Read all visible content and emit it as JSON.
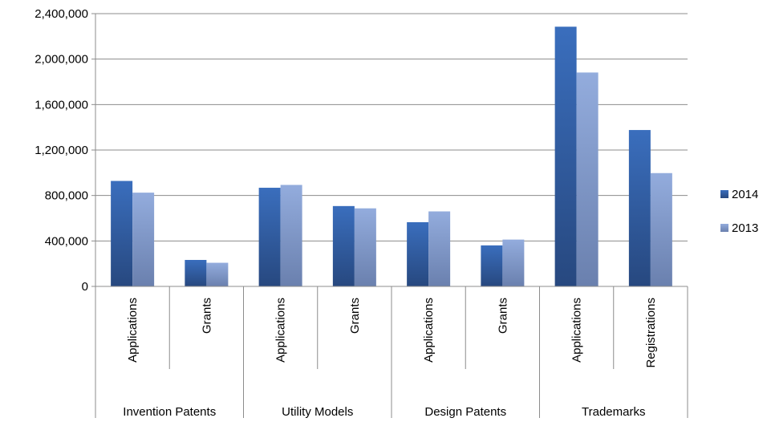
{
  "chart_data": {
    "type": "bar",
    "title": "",
    "xlabel": "",
    "ylabel": "",
    "ylim": [
      0,
      2400000
    ],
    "yticks": [
      "0",
      "400,000",
      "800,000",
      "1,200,000",
      "1,600,000",
      "2,000,000",
      "2,400,000"
    ],
    "categories": [
      "Applications",
      "Grants",
      "Applications",
      "Grants",
      "Applications",
      "Grants",
      "Applications",
      "Registrations"
    ],
    "groups": [
      {
        "label": "Invention Patents",
        "span": 2
      },
      {
        "label": "Utility Models",
        "span": 2
      },
      {
        "label": "Design Patents",
        "span": 2
      },
      {
        "label": "Trademarks",
        "span": 2
      }
    ],
    "series": [
      {
        "name": "2014",
        "color": "#3565AE",
        "values": [
          928000,
          233000,
          868000,
          707000,
          565000,
          361000,
          2285000,
          1376000
        ]
      },
      {
        "name": "2013",
        "color": "#8FA8D8",
        "values": [
          825000,
          208000,
          893000,
          687000,
          660000,
          412000,
          1882000,
          997000
        ]
      }
    ],
    "grid": true,
    "legend_position": "right"
  }
}
